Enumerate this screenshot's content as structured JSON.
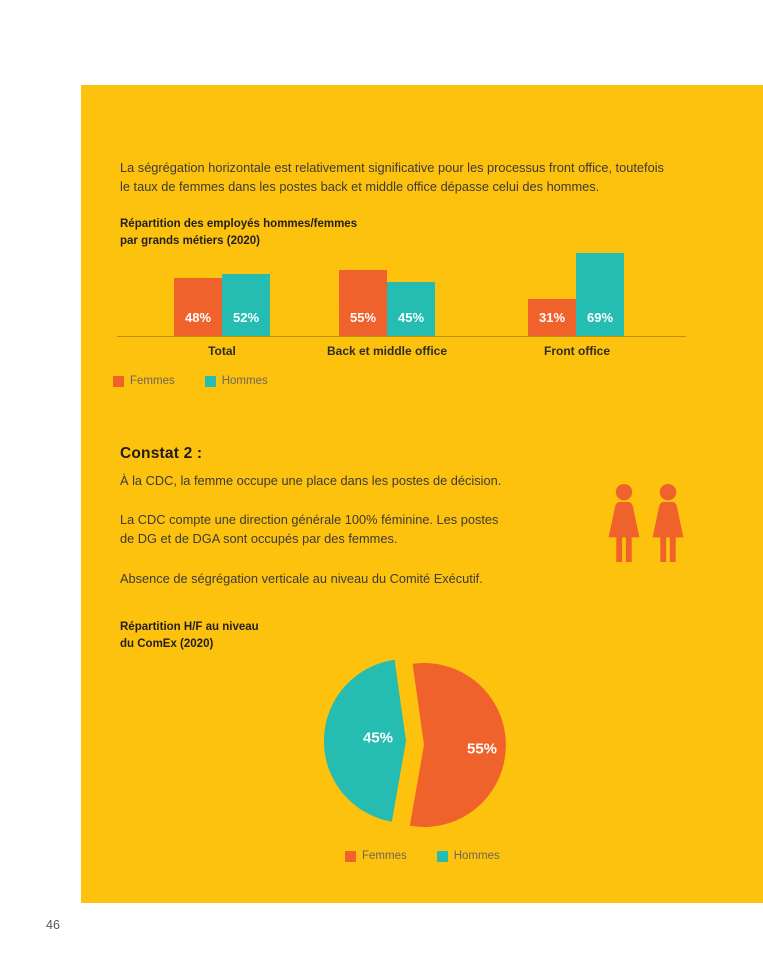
{
  "page": {
    "number": "46",
    "card_color": "#FDC20D",
    "background": "#FFFFFF"
  },
  "colors": {
    "femmes": "#F0622C",
    "hommes": "#25BCB2",
    "heading_text": "#231F20",
    "body_text": "#3E3A36",
    "legend_text": "#6C675A",
    "value_label_text": "#FFFFFF"
  },
  "intro": "La ségrégation horizontale est relativement significative pour les processus front office, toutefois\nle taux de femmes dans les postes back et middle office dépasse celui des hommes.",
  "constat": {
    "heading": "Constat 2 :",
    "line1": "À la CDC, la femme occupe une place dans les postes de décision.",
    "para2": "La CDC compte une direction générale 100% féminine. Les postes\nde DG et de DGA sont occupés par des femmes.",
    "para3": "Absence de ségrégation verticale au niveau du Comité Exécutif."
  },
  "people_icons": [
    "woman-icon",
    "woman-icon"
  ],
  "chart_data": [
    {
      "type": "bar",
      "title": "Répartition des employés hommes/femmes\npar grands métiers (2020)",
      "categories": [
        "Total",
        "Back et middle office",
        "Front office"
      ],
      "series": [
        {
          "name": "Femmes",
          "color": "#F0622C",
          "values": [
            48,
            55,
            31
          ]
        },
        {
          "name": "Hommes",
          "color": "#25BCB2",
          "values": [
            52,
            45,
            69
          ]
        }
      ],
      "unit": "%",
      "value_labels": "inside-bottom",
      "ylim": [
        0,
        100
      ],
      "grid": false,
      "legend_position": "bottom-left"
    },
    {
      "type": "pie",
      "title": "Répartition H/F au niveau\ndu ComEx (2020)",
      "slices": [
        {
          "name": "Femmes",
          "value": 55,
          "color": "#F0622C"
        },
        {
          "name": "Hommes",
          "value": 45,
          "color": "#25BCB2"
        }
      ],
      "unit": "%",
      "style": "exploded",
      "legend_position": "bottom"
    }
  ]
}
